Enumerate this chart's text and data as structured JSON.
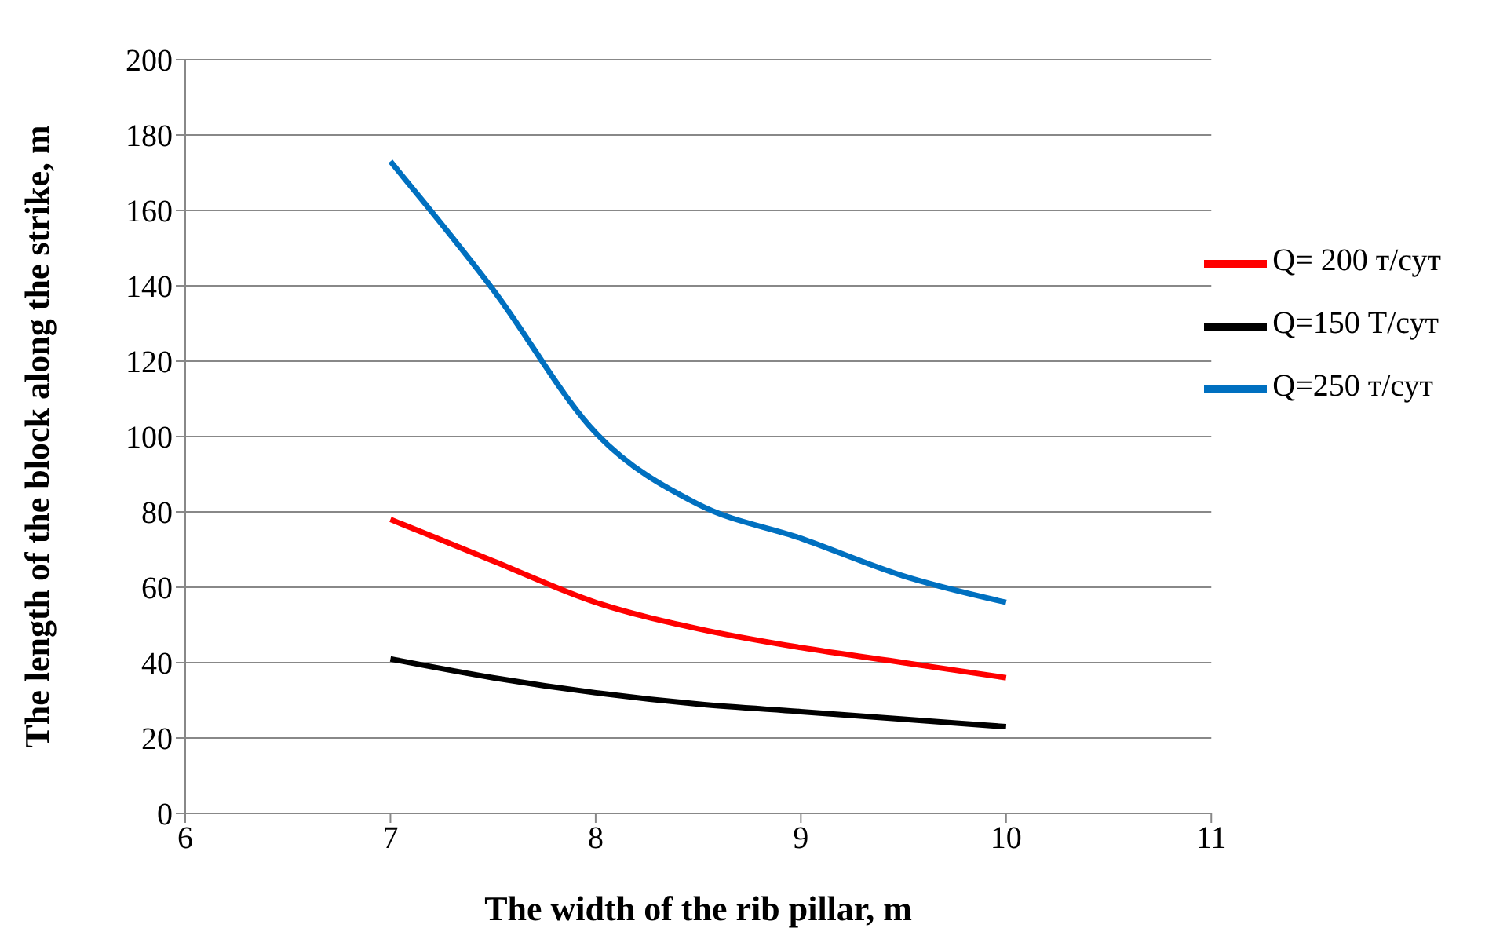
{
  "chart_data": {
    "type": "line",
    "xlabel": "The width of the rib pillar, m",
    "ylabel": "The length of the block along the strike, m",
    "x": [
      7,
      7.5,
      8,
      8.5,
      9,
      9.5,
      10
    ],
    "series": [
      {
        "name": "Q=150 Т/сут",
        "color": "#000000",
        "values": [
          41,
          36,
          32,
          29,
          27,
          25,
          23
        ]
      },
      {
        "name": "Q= 200 т/сут",
        "color": "#ff0000",
        "values": [
          78,
          67,
          56,
          49,
          44,
          40,
          36
        ]
      },
      {
        "name": "Q=250 т/сут",
        "color": "#0070c0",
        "values": [
          173,
          139,
          101,
          82,
          73,
          63,
          56
        ]
      }
    ],
    "xlim": [
      6,
      11
    ],
    "xticks": [
      6,
      7,
      8,
      9,
      10,
      11
    ],
    "ylim": [
      0,
      200
    ],
    "yticks": [
      0,
      20,
      40,
      60,
      80,
      100,
      120,
      140,
      160,
      180,
      200
    ],
    "grid": "y",
    "legend": "right",
    "marker": "none",
    "line_style": "solid"
  }
}
